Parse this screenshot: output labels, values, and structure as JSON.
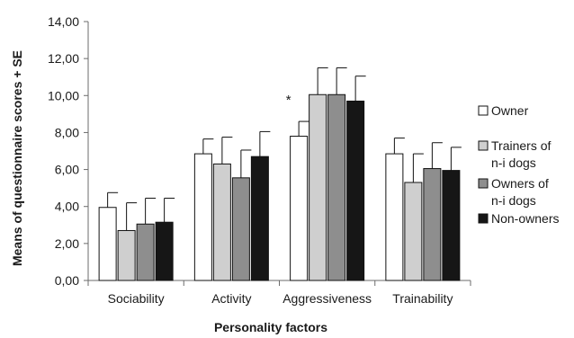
{
  "chart_data": {
    "type": "bar",
    "title": "",
    "xlabel": "Personality factors",
    "ylabel": "Means of questionnaire scores + SE",
    "ylim": [
      0,
      14
    ],
    "yticks": [
      "0,00",
      "2,00",
      "4,00",
      "6,00",
      "8,00",
      "10,00",
      "12,00",
      "14,00"
    ],
    "categories": [
      "Sociability",
      "Activity",
      "Aggressiveness",
      "Trainability"
    ],
    "legend_position": "right",
    "series": [
      {
        "name": "Owner",
        "color": "#ffffff",
        "values": [
          3.95,
          6.85,
          7.8,
          6.85
        ],
        "se": [
          0.8,
          0.8,
          0.8,
          0.85
        ]
      },
      {
        "name": "Trainers of n-i dogs",
        "color": "#cfcfcf",
        "values": [
          2.7,
          6.3,
          10.05,
          5.3
        ],
        "se": [
          1.5,
          1.45,
          1.45,
          1.55
        ]
      },
      {
        "name": "Owners of n-i dogs",
        "color": "#8e8e8e",
        "values": [
          3.05,
          5.55,
          10.05,
          6.05
        ],
        "se": [
          1.4,
          1.5,
          1.45,
          1.4
        ]
      },
      {
        "name": "Non-owners",
        "color": "#161616",
        "values": [
          3.15,
          6.7,
          9.7,
          5.95
        ],
        "se": [
          1.3,
          1.35,
          1.35,
          1.25
        ]
      }
    ],
    "legend_lines": [
      [
        "Owner"
      ],
      [
        "Trainers of",
        "n-i dogs"
      ],
      [
        "Owners of",
        "n-i dogs"
      ],
      [
        "Non-owners"
      ]
    ],
    "annotations": [
      {
        "text": "*",
        "category": "Aggressiveness",
        "series": "Owner"
      }
    ]
  }
}
